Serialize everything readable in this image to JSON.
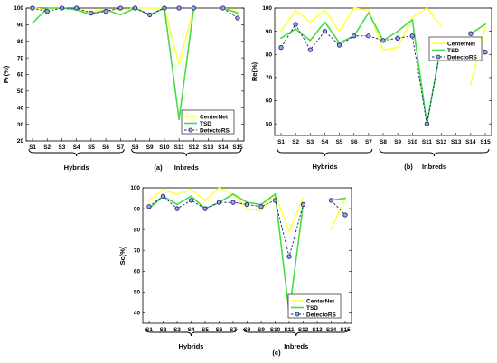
{
  "chart_data": [
    {
      "type": "line",
      "panel_label": "(a)",
      "ylabel": "Pr(%)",
      "ylim": [
        20,
        100
      ],
      "yticks": [
        20,
        30,
        40,
        50,
        60,
        70,
        80,
        90,
        100
      ],
      "categories": [
        "S1",
        "S2",
        "S3",
        "S4",
        "S5",
        "S6",
        "S7",
        "S8",
        "S9",
        "S10",
        "S11",
        "S12",
        "S13",
        "S14",
        "S15"
      ],
      "groups": [
        {
          "label": "Hybrids",
          "from": "S1",
          "to": "S7"
        },
        {
          "label": "Inbreds",
          "from": "S8",
          "to": "S15"
        }
      ],
      "legend_position": "bottom-right",
      "series": [
        {
          "name": "CenterNet",
          "color": "#ffff44",
          "values": [
            100,
            99,
            100,
            99,
            98,
            99,
            99,
            100,
            100,
            100,
            66,
            100,
            null,
            100,
            98
          ]
        },
        {
          "name": "TSD",
          "color": "#44dd44",
          "values": [
            91,
            100,
            100,
            99,
            96,
            99,
            96,
            100,
            96,
            100,
            33,
            100,
            null,
            100,
            97
          ]
        },
        {
          "name": "DetectoRS",
          "color": "#1a237e",
          "values": [
            100,
            98,
            100,
            100,
            97,
            98,
            100,
            100,
            96,
            100,
            100,
            100,
            null,
            100,
            94
          ]
        }
      ]
    },
    {
      "type": "line",
      "panel_label": "(b)",
      "ylabel": "Re(%)",
      "ylim": [
        45,
        100
      ],
      "yticks": [
        50,
        60,
        70,
        80,
        90,
        100
      ],
      "categories": [
        "S1",
        "S2",
        "S3",
        "S4",
        "S5",
        "S6",
        "S7",
        "S8",
        "S9",
        "S10",
        "S11",
        "S12",
        "S13",
        "S14",
        "S15"
      ],
      "groups": [
        {
          "label": "Hybrids",
          "from": "S1",
          "to": "S7"
        },
        {
          "label": "Inbreds",
          "from": "S8",
          "to": "S15"
        }
      ],
      "legend_position": "right",
      "series": [
        {
          "name": "CenterNet",
          "color": "#ffff44",
          "values": [
            90,
            99,
            94,
            99,
            90,
            100,
            99,
            82,
            83,
            96,
            100,
            92,
            null,
            67,
            92
          ]
        },
        {
          "name": "TSD",
          "color": "#44dd44",
          "values": [
            87,
            91,
            86,
            94,
            85,
            88,
            98,
            86,
            90,
            95,
            50,
            85,
            null,
            89,
            93
          ]
        },
        {
          "name": "DetectoRS",
          "color": "#1a237e",
          "values": [
            83,
            93,
            82,
            90,
            84,
            88,
            88,
            86,
            87,
            88,
            50,
            85,
            null,
            89,
            81
          ]
        }
      ]
    },
    {
      "type": "line",
      "panel_label": "(c)",
      "ylabel": "Sc(%)",
      "ylim": [
        35,
        100
      ],
      "yticks": [
        40,
        50,
        60,
        70,
        80,
        90,
        100
      ],
      "categories": [
        "S1",
        "S2",
        "S3",
        "S4",
        "S5",
        "S6",
        "S7",
        "S8",
        "S9",
        "S10",
        "S11",
        "S12",
        "S13",
        "S14",
        "S15"
      ],
      "groups": [
        {
          "label": "Hybrids",
          "from": "S1",
          "to": "S7"
        },
        {
          "label": "Inbreds",
          "from": "S8",
          "to": "S15"
        }
      ],
      "legend_position": "bottom-right",
      "series": [
        {
          "name": "CenterNet",
          "color": "#ffff44",
          "values": [
            94,
            99,
            97,
            99,
            94,
            100,
            97,
            90,
            89,
            97,
            79,
            95,
            null,
            80,
            95
          ]
        },
        {
          "name": "TSD",
          "color": "#44dd44",
          "values": [
            90,
            96,
            92,
            96,
            90,
            93,
            97,
            93,
            92,
            97,
            40,
            92,
            null,
            94,
            95
          ]
        },
        {
          "name": "DetectoRS",
          "color": "#1a237e",
          "values": [
            91,
            96,
            90,
            94,
            90,
            93,
            93,
            92,
            91,
            94,
            67,
            92,
            null,
            94,
            87
          ]
        }
      ]
    }
  ]
}
